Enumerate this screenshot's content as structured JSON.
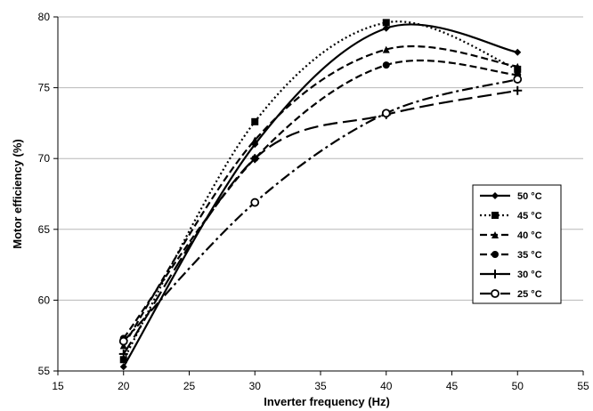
{
  "chart_data": {
    "type": "line",
    "title": "",
    "xlabel": "Inverter frequency (Hz)",
    "ylabel": "Motor efficiency (%)",
    "xlim": [
      15,
      55
    ],
    "ylim": [
      55,
      80
    ],
    "x_ticks": [
      "15",
      "20",
      "25",
      "30",
      "35",
      "40",
      "45",
      "50",
      "55"
    ],
    "y_ticks": [
      "55",
      "60",
      "65",
      "70",
      "75",
      "80"
    ],
    "grid": "horizontal",
    "legend_position": "right",
    "x": [
      20,
      30,
      40,
      50
    ],
    "series": [
      {
        "name": "50 °C",
        "values": [
          55.3,
          71.0,
          79.2,
          77.5
        ],
        "line": "solid",
        "marker": "diamond",
        "color": "#000000"
      },
      {
        "name": "45 °C",
        "values": [
          55.8,
          72.6,
          79.6,
          76.3
        ],
        "line": "dotted",
        "marker": "square",
        "color": "#000000"
      },
      {
        "name": "40 °C",
        "values": [
          56.8,
          71.3,
          77.7,
          76.5
        ],
        "line": "dashed",
        "marker": "triangle",
        "color": "#000000"
      },
      {
        "name": "35 °C",
        "values": [
          57.3,
          70.0,
          76.6,
          75.9
        ],
        "line": "dashed",
        "marker": "circle",
        "color": "#000000"
      },
      {
        "name": "30 °C",
        "values": [
          56.2,
          70.0,
          73.1,
          74.8
        ],
        "line": "longdash",
        "marker": "plus",
        "color": "#000000"
      },
      {
        "name": "25 °C",
        "values": [
          57.1,
          66.9,
          73.2,
          75.6
        ],
        "line": "dashdot",
        "marker": "open-circle",
        "color": "#000000"
      }
    ]
  }
}
